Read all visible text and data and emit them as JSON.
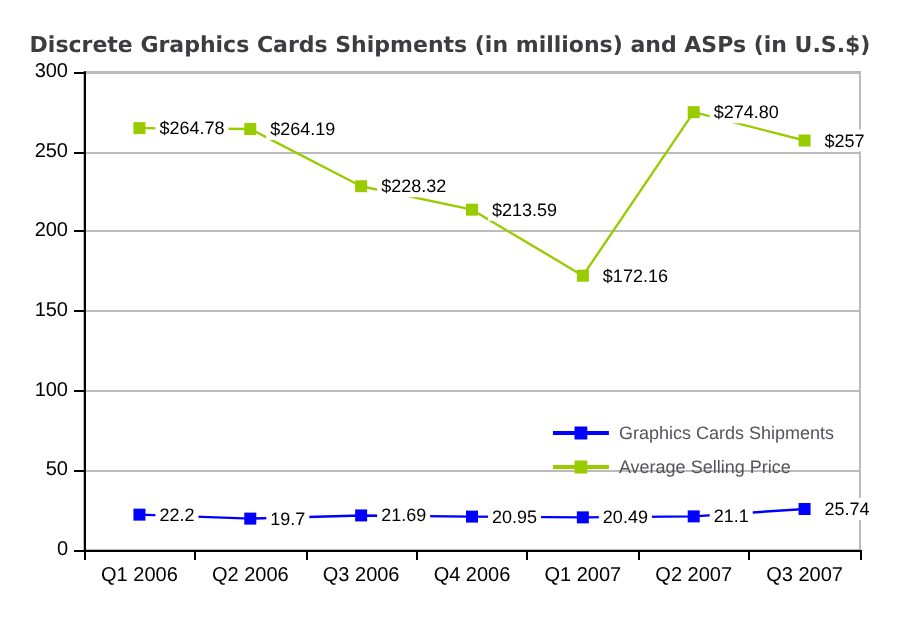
{
  "chart_data": {
    "type": "line",
    "title": "Discrete Graphics Cards Shipments (in millions) and ASPs (in U.S.$)",
    "categories": [
      "Q1 2006",
      "Q2 2006",
      "Q3 2006",
      "Q4 2006",
      "Q1 2007",
      "Q2 2007",
      "Q3 2007"
    ],
    "series": [
      {
        "name": "Graphics Cards Shipments",
        "color": "#0000ff",
        "values": [
          22.2,
          19.7,
          21.69,
          20.95,
          20.49,
          21.1,
          25.74
        ],
        "value_labels": [
          "22.2",
          "19.7",
          "21.69",
          "20.95",
          "20.49",
          "21.1",
          "25.74"
        ]
      },
      {
        "name": "Average Selling Price",
        "color": "#99cc00",
        "values": [
          264.78,
          264.19,
          228.32,
          213.59,
          172.16,
          274.8,
          257
        ],
        "value_labels": [
          "$264.78",
          "$264.19",
          "$228.32",
          "$213.59",
          "$172.16",
          "$274.80",
          "$257"
        ]
      }
    ],
    "ylim": [
      0,
      300
    ],
    "yticks": [
      0,
      50,
      100,
      150,
      200,
      250,
      300
    ],
    "grid": "y",
    "legend": "bottom right",
    "marker": "square",
    "line_style": "solid"
  }
}
